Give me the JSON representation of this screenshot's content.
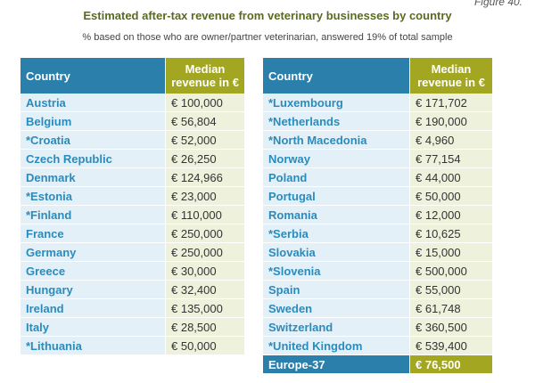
{
  "figure_label": "Figure 40.",
  "title": "Estimated after-tax revenue from veterinary businesses by country",
  "subtitle": "% based on those who are owner/partner veterinarian, answered 19% of total sample",
  "headers": {
    "country": "Country",
    "revenue_line1": "Median",
    "revenue_line2": "revenue in €"
  },
  "left_rows": [
    {
      "country": "Austria",
      "revenue": "€ 100,000"
    },
    {
      "country": "Belgium",
      "revenue": "€ 56,804"
    },
    {
      "country": "*Croatia",
      "revenue": "€ 52,000"
    },
    {
      "country": "Czech Republic",
      "revenue": "€ 26,250"
    },
    {
      "country": "Denmark",
      "revenue": "€ 124,966"
    },
    {
      "country": "*Estonia",
      "revenue": "€ 23,000"
    },
    {
      "country": "*Finland",
      "revenue": "€ 110,000"
    },
    {
      "country": "France",
      "revenue": "€ 250,000"
    },
    {
      "country": "Germany",
      "revenue": "€ 250,000"
    },
    {
      "country": "Greece",
      "revenue": "€ 30,000"
    },
    {
      "country": "Hungary",
      "revenue": "€ 32,400"
    },
    {
      "country": "Ireland",
      "revenue": "€ 135,000"
    },
    {
      "country": "Italy",
      "revenue": "€ 28,500"
    },
    {
      "country": "*Lithuania",
      "revenue": "€ 50,000"
    }
  ],
  "right_rows": [
    {
      "country": "*Luxembourg",
      "revenue": "€ 171,702"
    },
    {
      "country": "*Netherlands",
      "revenue": "€ 190,000"
    },
    {
      "country": "*North Macedonia",
      "revenue": "€ 4,960"
    },
    {
      "country": "Norway",
      "revenue": "€ 77,154"
    },
    {
      "country": "Poland",
      "revenue": "€ 44,000"
    },
    {
      "country": "Portugal",
      "revenue": "€ 50,000"
    },
    {
      "country": "Romania",
      "revenue": "€ 12,000"
    },
    {
      "country": "*Serbia",
      "revenue": "€ 10,625"
    },
    {
      "country": "Slovakia",
      "revenue": "€ 15,000"
    },
    {
      "country": "*Slovenia",
      "revenue": "€ 500,000"
    },
    {
      "country": "Spain",
      "revenue": "€ 55,000"
    },
    {
      "country": "Sweden",
      "revenue": "€ 61,748"
    },
    {
      "country": "Switzerland",
      "revenue": "€ 360,500"
    },
    {
      "country": "*United Kingdom",
      "revenue": "€ 539,400"
    }
  ],
  "total": {
    "country": "Europe-37",
    "revenue": "€ 76,500"
  },
  "colors": {
    "header_blue": "#2a7fab",
    "header_olive": "#a3a621",
    "country_text": "#2a8bbd",
    "title_green": "#5a6b1f"
  }
}
